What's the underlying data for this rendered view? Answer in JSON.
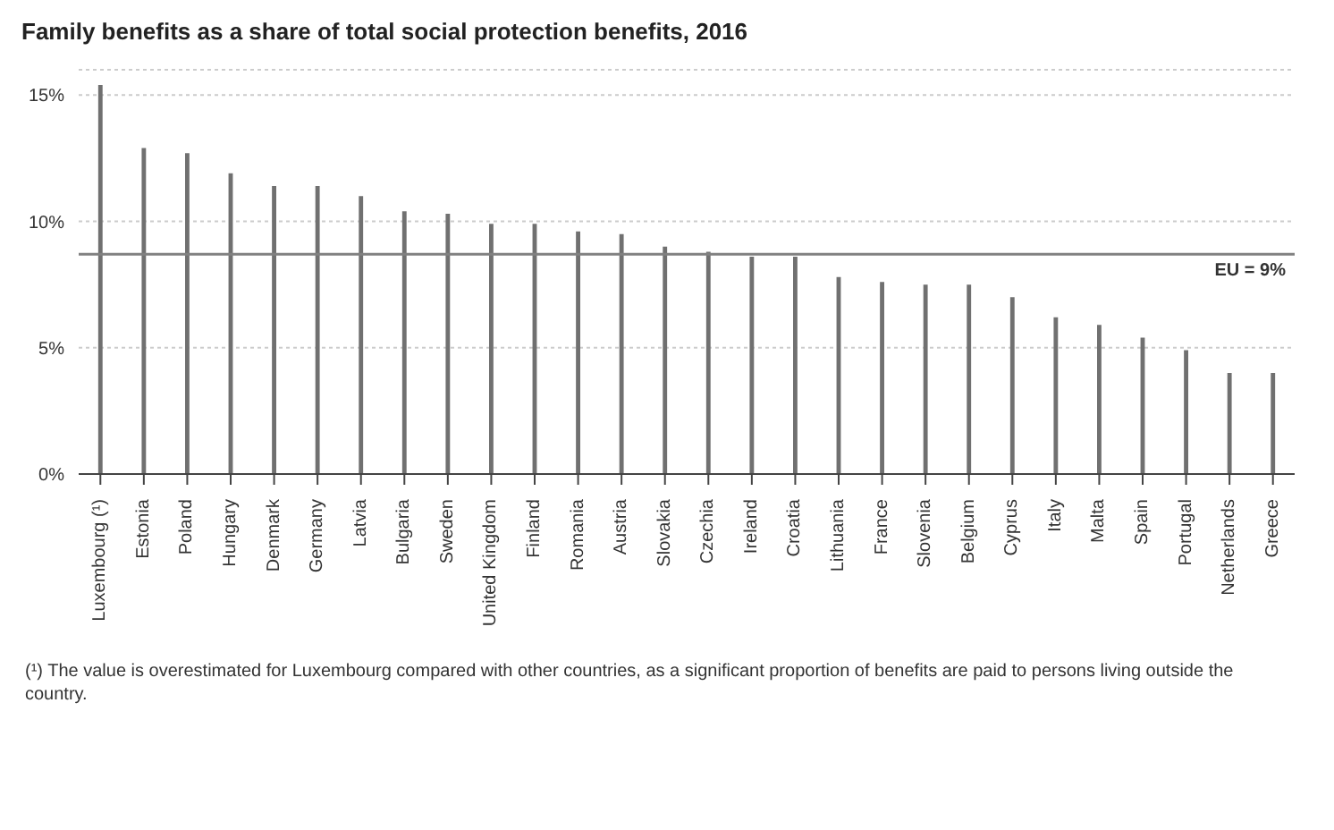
{
  "chart_data": {
    "type": "bar",
    "title": "Family benefits as a share of total social protection benefits, 2016",
    "categories": [
      "Luxembourg (¹)",
      "Estonia",
      "Poland",
      "Hungary",
      "Denmark",
      "Germany",
      "Latvia",
      "Bulgaria",
      "Sweden",
      "United Kingdom",
      "Finland",
      "Romania",
      "Austria",
      "Slovakia",
      "Czechia",
      "Ireland",
      "Croatia",
      "Lithuania",
      "France",
      "Slovenia",
      "Belgium",
      "Cyprus",
      "Italy",
      "Malta",
      "Spain",
      "Portugal",
      "Netherlands",
      "Greece"
    ],
    "values": [
      15.4,
      12.9,
      12.7,
      11.9,
      11.4,
      11.4,
      11.0,
      10.4,
      10.3,
      9.9,
      9.9,
      9.6,
      9.5,
      9.0,
      8.8,
      8.6,
      8.6,
      7.8,
      7.6,
      7.5,
      7.5,
      7.0,
      6.2,
      5.9,
      5.4,
      4.9,
      4.0,
      4.0
    ],
    "color": "#707070",
    "ylim": [
      0,
      16
    ],
    "yticks": [
      {
        "value": 0,
        "label": "0%"
      },
      {
        "value": 5,
        "label": "5%"
      },
      {
        "value": 10,
        "label": "10%"
      },
      {
        "value": 15,
        "label": "15%"
      }
    ],
    "grid": "y",
    "ref_lines": [
      {
        "axis": "y",
        "value": 8.7,
        "label": "EU = 9%",
        "color": "#808080"
      }
    ],
    "annotations": [
      "(¹) The value is overestimated for Luxembourg compared with other countries, as a significant proportion of benefits are paid to persons living outside the country."
    ]
  }
}
